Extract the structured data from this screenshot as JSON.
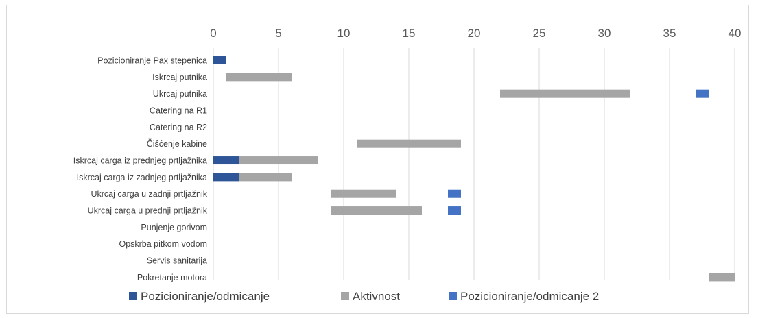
{
  "chart_data": {
    "type": "bar",
    "orientation": "horizontal-stacked-gantt",
    "title": "",
    "xlabel": "",
    "ylabel": "",
    "xlim": [
      0,
      40
    ],
    "xticks": [
      "0",
      "5",
      "10",
      "15",
      "20",
      "25",
      "30",
      "35",
      "40"
    ],
    "x_axis_position": "top",
    "grid": true,
    "legend_position": "bottom",
    "categories": [
      "Pozicioniranje Pax stepenica",
      "Iskrcaj putnika",
      "Ukrcaj putnika",
      "Catering na R1",
      "Catering na R2",
      "Čišćenje kabine",
      "Iskrcaj carga iz prednjeg prtljažnika",
      "Iskrcaj carga iz zadnjeg prtljažnika",
      "Ukrcaj carga u zadnji prtljažnik",
      "Ukrcaj carga u prednji prtljažnik",
      "Punjenje gorivom",
      "Opskrba pitkom vodom",
      "Servis sanitarija",
      "Pokretanje motora"
    ],
    "series": [
      {
        "name": "Pozicioniranje/odmicanje",
        "color": "#2e5597",
        "segments": [
          {
            "category": 0,
            "start": 0,
            "end": 1
          },
          {
            "category": 6,
            "start": 0,
            "end": 2
          },
          {
            "category": 7,
            "start": 0,
            "end": 2
          }
        ]
      },
      {
        "name": "Aktivnost",
        "color": "#a5a5a5",
        "segments": [
          {
            "category": 1,
            "start": 1,
            "end": 6
          },
          {
            "category": 2,
            "start": 22,
            "end": 32
          },
          {
            "category": 5,
            "start": 11,
            "end": 19
          },
          {
            "category": 6,
            "start": 2,
            "end": 8
          },
          {
            "category": 7,
            "start": 2,
            "end": 6
          },
          {
            "category": 8,
            "start": 9,
            "end": 14
          },
          {
            "category": 9,
            "start": 9,
            "end": 16
          },
          {
            "category": 13,
            "start": 38,
            "end": 40
          }
        ]
      },
      {
        "name": "Pozicioniranje/odmicanje 2",
        "color": "#4472c4",
        "segments": [
          {
            "category": 2,
            "start": 37,
            "end": 38
          },
          {
            "category": 8,
            "start": 18,
            "end": 19
          },
          {
            "category": 9,
            "start": 18,
            "end": 19
          }
        ]
      }
    ]
  }
}
